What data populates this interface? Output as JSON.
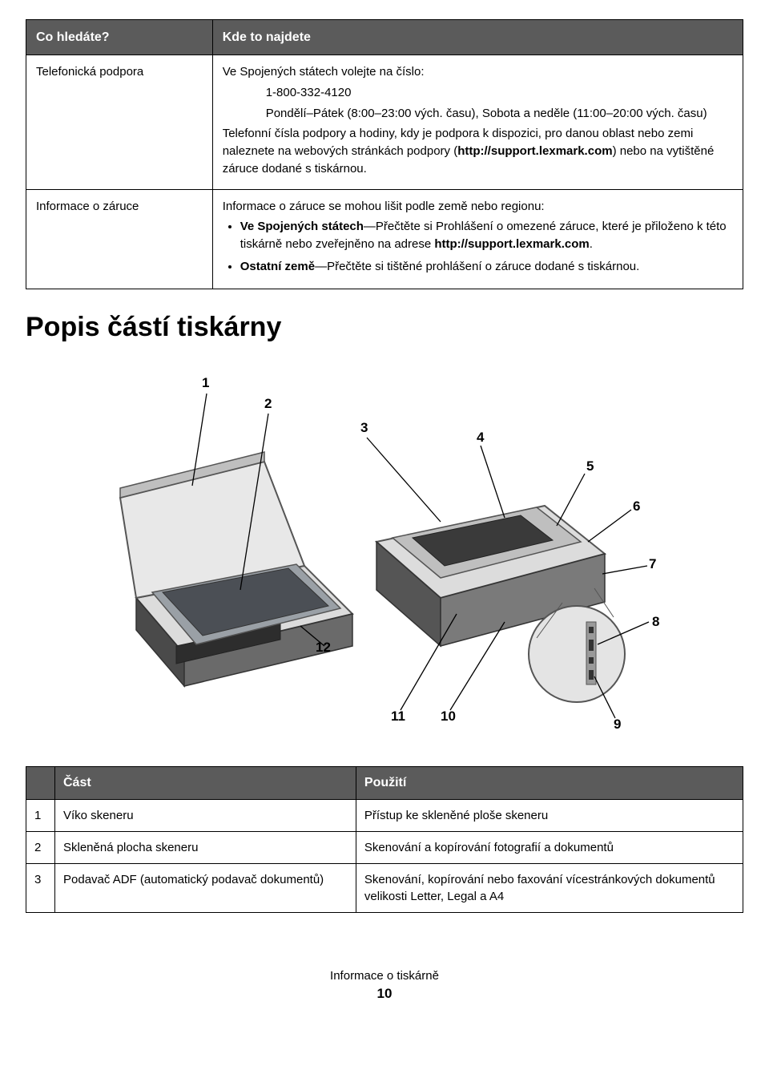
{
  "info_table": {
    "headers": {
      "col1": "Co hledáte?",
      "col2": "Kde to najdete"
    },
    "rows": [
      {
        "label": "Telefonická podpora",
        "paragraphs": [
          {
            "text": "Ve Spojených státech volejte na číslo:",
            "indent": false
          },
          {
            "text": "1-800-332-4120",
            "indent": true
          },
          {
            "text": "Pondělí–Pátek (8:00–23:00 vých. času), Sobota a neděle (11:00–20:00 vých. času)",
            "indent": true
          },
          {
            "html": "Telefonní čísla podpory a hodiny, kdy je podpora k dispozici, pro danou oblast nebo zemi naleznete na webových stránkách podpory (<span class=\"bold\">http://support.lexmark.com</span>) nebo na vytištěné záruce dodané s tiskárnou.",
            "indent": false
          }
        ]
      },
      {
        "label": "Informace o záruce",
        "lead": "Informace o záruce se mohou lišit podle země nebo regionu:",
        "bullets": [
          "<span class=\"bold\">Ve Spojených státech</span>—Přečtěte si Prohlášení o omezené záruce, které je přiloženo k této tiskárně nebo zveřejněno na adrese <span class=\"bold\">http://support.lexmark.com</span>.",
          "<span class=\"bold\">Ostatní země</span>—Přečtěte si tištěné prohlášení o záruce dodané s tiskárnou."
        ]
      }
    ]
  },
  "section_heading": "Popis částí tiskárny",
  "callouts": [
    "1",
    "2",
    "3",
    "4",
    "5",
    "6",
    "7",
    "8",
    "9",
    "10",
    "11",
    "12"
  ],
  "parts_table": {
    "headers": {
      "part": "Část",
      "use": "Použití"
    },
    "rows": [
      {
        "n": "1",
        "part": "Víko skeneru",
        "use": "Přístup ke skleněné ploše skeneru"
      },
      {
        "n": "2",
        "part": "Skleněná plocha skeneru",
        "use": "Skenování a kopírování fotografií a dokumentů"
      },
      {
        "n": "3",
        "part": "Podavač ADF (automatický podavač dokumentů)",
        "use": "Skenování, kopírování nebo faxování vícestránkových dokumentů velikosti Letter, Legal a A4"
      }
    ]
  },
  "footer": {
    "title": "Informace o tiskárně",
    "page": "10"
  }
}
